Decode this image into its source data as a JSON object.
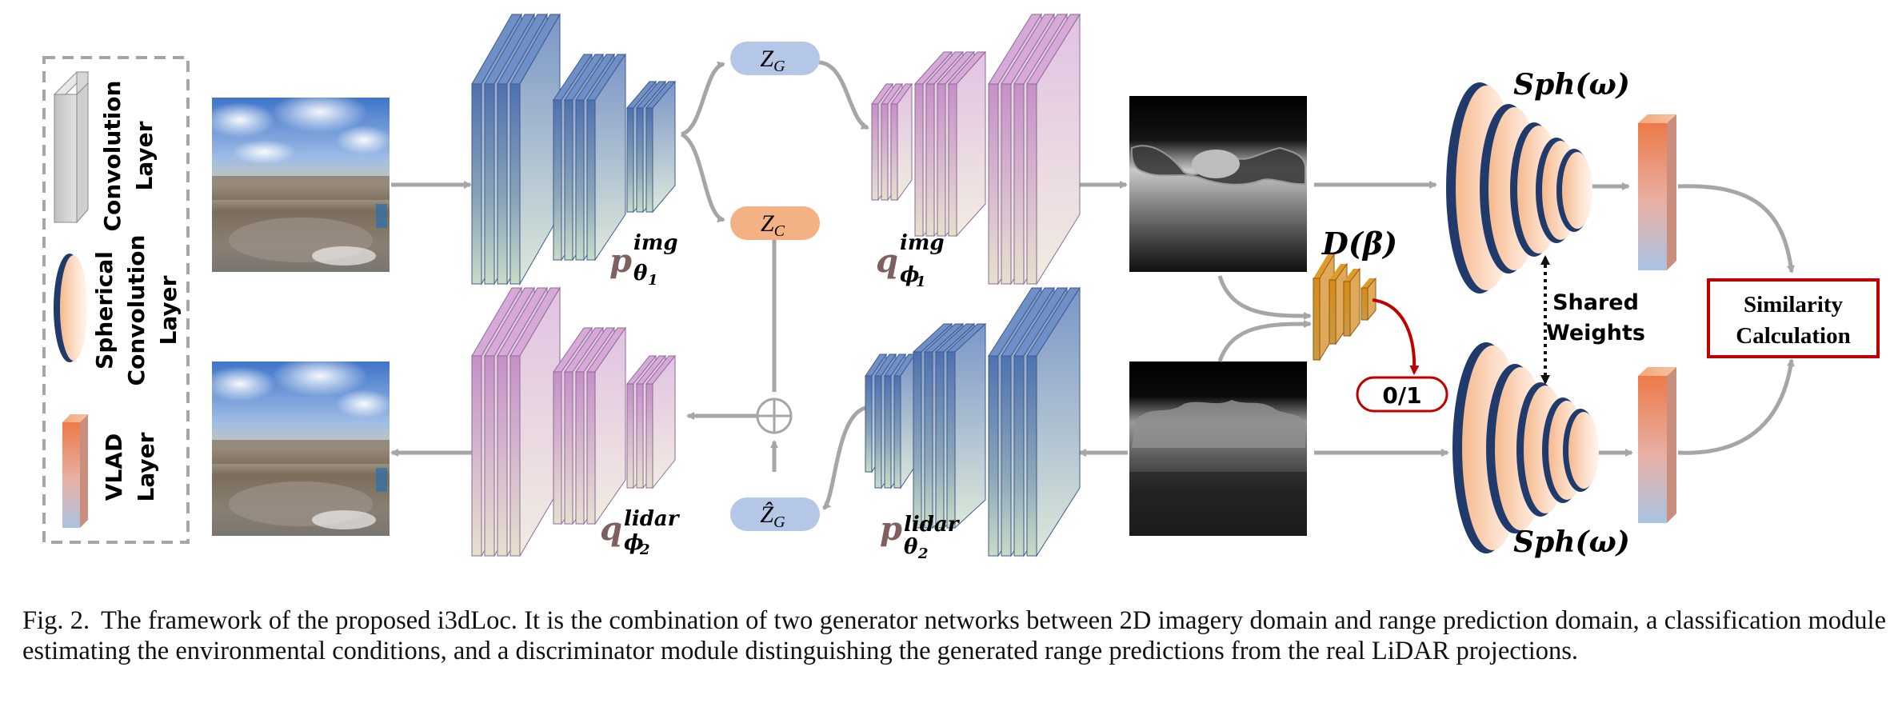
{
  "legend": {
    "conv_label_1": "Convolution",
    "conv_label_2": "Layer",
    "sph_label_1": "Spherical",
    "sph_label_2": "Convolution",
    "sph_label_3": "Layer",
    "vlad_label_1": "VLAD",
    "vlad_label_2": "Layer"
  },
  "nodes": {
    "z_g": "Z",
    "z_g_sub": "G",
    "z_c": "Z",
    "z_c_sub": "C",
    "z_g_hat": "Ẑ",
    "z_g_hat_sub": "G",
    "p_img": "p",
    "p_img_sup": "img",
    "p_img_sub": "θ",
    "p_img_sub_idx": "1",
    "q_img": "q",
    "q_img_sup": "img",
    "q_img_sub": "ϕ",
    "q_img_sub_idx": "1",
    "q_lidar": "q",
    "q_lidar_sup": "lidar",
    "q_lidar_sub": "ϕ",
    "q_lidar_sub_idx": "2",
    "p_lidar": "p",
    "p_lidar_sup": "lidar",
    "p_lidar_sub": "θ",
    "p_lidar_sub_idx": "2",
    "discriminator": "D(β)",
    "binary_output": "0/1",
    "sph_top": "Sph(ω)",
    "sph_bottom": "Sph(ω)",
    "shared_weights_1": "Shared",
    "shared_weights_2": "Weights",
    "similarity_1": "Similarity",
    "similarity_2": "Calculation"
  },
  "caption": {
    "label": "Fig. 2.",
    "text": "The framework of the proposed i3dLoc. It is the combination of two generator networks between 2D imagery domain and range prediction domain, a classification module estimating the environmental conditions, and a discriminator module distinguishing the generated range predictions from the real LiDAR projections."
  },
  "colors": {
    "arrow": "#a6a6a6",
    "z_blue": "#b4c7e7",
    "z_orange": "#f4b183",
    "red": "#c00000",
    "maroon_text": "#7f6060"
  }
}
